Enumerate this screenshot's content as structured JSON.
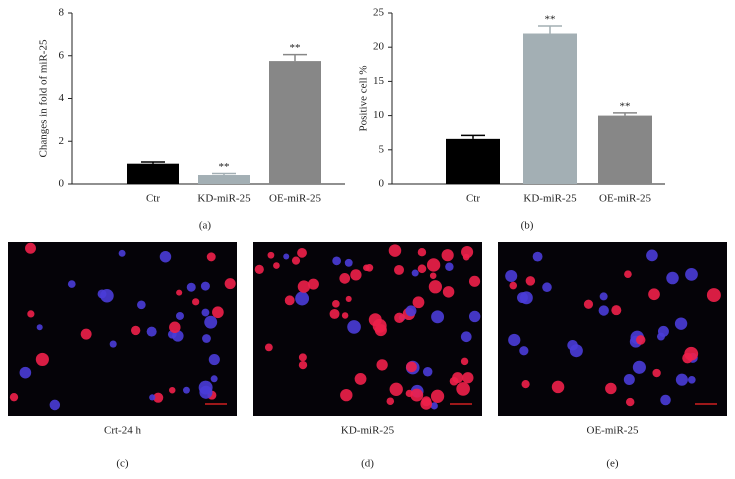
{
  "chart_data": [
    {
      "type": "bar",
      "panel_label": "(a)",
      "ylabel": "Changes in fold of miR-25",
      "categories": [
        "Ctr",
        "KD-miR-25",
        "OE-miR-25"
      ],
      "values": [
        0.95,
        0.42,
        5.75
      ],
      "errors": [
        0.08,
        0.07,
        0.3
      ],
      "annotations": [
        null,
        "**",
        "**"
      ],
      "colors": [
        "#000000",
        "#a3afb4",
        "#878787"
      ],
      "ylim": [
        0,
        8
      ],
      "yticks": [
        0,
        2,
        4,
        6,
        8
      ]
    },
    {
      "type": "bar",
      "panel_label": "(b)",
      "ylabel": "Positive cell %",
      "categories": [
        "Ctr",
        "KD-miR-25",
        "OE-miR-25"
      ],
      "values": [
        6.6,
        22,
        10
      ],
      "errors": [
        0.5,
        1.1,
        0.4
      ],
      "annotations": [
        null,
        "**",
        "**"
      ],
      "colors": [
        "#000000",
        "#a3afb4",
        "#878787"
      ],
      "ylim": [
        0,
        25
      ],
      "yticks": [
        0,
        5,
        10,
        15,
        20,
        25
      ]
    }
  ],
  "panels": [
    {
      "caption": "Crt-24 h",
      "label": "(c)"
    },
    {
      "caption": "KD-miR-25",
      "label": "(d)"
    },
    {
      "caption": "OE-miR-25",
      "label": "(e)"
    }
  ]
}
